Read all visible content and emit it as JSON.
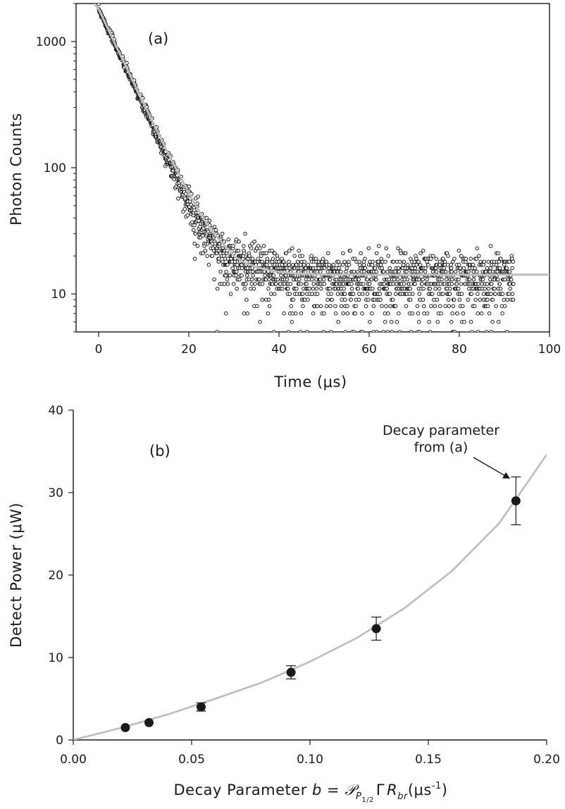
{
  "chart_data": [
    {
      "panel": "(a)",
      "type": "scatter",
      "xlabel": "Time (μs)",
      "ylabel": "Photon Counts",
      "xlim": [
        -5,
        100
      ],
      "ylim": [
        5,
        2000
      ],
      "yscale": "log",
      "x_ticks": [
        {
          "value": 0,
          "label": "0"
        },
        {
          "value": 20,
          "label": "20"
        },
        {
          "value": 40,
          "label": "40"
        },
        {
          "value": 60,
          "label": "60"
        },
        {
          "value": 80,
          "label": "80"
        },
        {
          "value": 100,
          "label": "100"
        }
      ],
      "y_ticks": [
        {
          "value": 10,
          "label": "10"
        },
        {
          "value": 100,
          "label": "100"
        },
        {
          "value": 1000,
          "label": "1000"
        }
      ],
      "series": [
        {
          "kind": "scatter",
          "marker": "open-circle",
          "color": "#1a1a1a",
          "x_start": 0,
          "x_end": 92,
          "points": [
            [
              0,
              1800
            ],
            [
              2,
              1250
            ],
            [
              4,
              880
            ],
            [
              6,
              615
            ],
            [
              8,
              430
            ],
            [
              10,
              300
            ],
            [
              12,
              212
            ],
            [
              14,
              148
            ],
            [
              16,
              104
            ],
            [
              18,
              74
            ],
            [
              20,
              53
            ],
            [
              22,
              39
            ],
            [
              24,
              30
            ],
            [
              26,
              24
            ],
            [
              28,
              20
            ],
            [
              30,
              18
            ],
            [
              32,
              17
            ],
            [
              35,
              16
            ],
            [
              38,
              15
            ],
            [
              42,
              14
            ],
            [
              50,
              13
            ],
            [
              60,
              13
            ],
            [
              70,
              13
            ],
            [
              80,
              13
            ],
            [
              92,
              13
            ]
          ]
        },
        {
          "kind": "line",
          "color": "#bdbdbd",
          "points": [
            [
              -1,
              2000
            ],
            [
              0,
              1800
            ],
            [
              2,
              1275
            ],
            [
              4,
              900
            ],
            [
              6,
              640
            ],
            [
              8,
              455
            ],
            [
              10,
              323
            ],
            [
              12,
              230
            ],
            [
              14,
              164
            ],
            [
              16,
              118
            ],
            [
              18,
              86
            ],
            [
              20,
              63
            ],
            [
              22,
              47
            ],
            [
              24,
              36
            ],
            [
              26,
              29
            ],
            [
              28,
              24
            ],
            [
              30,
              20
            ],
            [
              32,
              18
            ],
            [
              34,
              16.8
            ],
            [
              36,
              15.9
            ],
            [
              38,
              15.3
            ],
            [
              40,
              14.9
            ],
            [
              44,
              14.5
            ],
            [
              50,
              14.3
            ],
            [
              60,
              14.2
            ],
            [
              80,
              14.2
            ],
            [
              100,
              14.2
            ]
          ]
        }
      ]
    },
    {
      "panel": "(b)",
      "type": "scatter",
      "xlabel": "Decay Parameter b = 𝒫P1/2 Γ Rbr(μs-1)",
      "xlabel_parts": {
        "lead": "Decay Parameter ",
        "b": "b",
        "eq": " = ",
        "script_p": "𝒫",
        "sub_p": "P",
        "sub_half": "1/2",
        "gamma": "Γ",
        "r": "R",
        "sub_br": "br",
        "unit_open": "(μs",
        "unit_sup": "-1",
        "unit_close": ")"
      },
      "ylabel": "Detect Power (μW)",
      "xlim": [
        0,
        0.2
      ],
      "ylim": [
        0,
        40
      ],
      "x_ticks": [
        {
          "value": 0,
          "label": "0.00"
        },
        {
          "value": 0.05,
          "label": "0.05"
        },
        {
          "value": 0.1,
          "label": "0.10"
        },
        {
          "value": 0.15,
          "label": "0.15"
        },
        {
          "value": 0.2,
          "label": "0.20"
        }
      ],
      "y_ticks": [
        {
          "value": 0,
          "label": "0"
        },
        {
          "value": 10,
          "label": "10"
        },
        {
          "value": 20,
          "label": "20"
        },
        {
          "value": 30,
          "label": "30"
        },
        {
          "value": 40,
          "label": "40"
        }
      ],
      "points": [
        {
          "x": 0.022,
          "y": 1.5,
          "err": 0
        },
        {
          "x": 0.032,
          "y": 2.1,
          "err": 0
        },
        {
          "x": 0.054,
          "y": 4.0,
          "err": 0.5
        },
        {
          "x": 0.092,
          "y": 8.2,
          "err": 0.8
        },
        {
          "x": 0.128,
          "y": 13.5,
          "err": 1.4
        },
        {
          "x": 0.187,
          "y": 29.0,
          "err": 2.9
        }
      ],
      "fit_curve": [
        [
          0,
          0
        ],
        [
          0.02,
          1.45
        ],
        [
          0.04,
          3.1
        ],
        [
          0.06,
          5.0
        ],
        [
          0.08,
          7.0
        ],
        [
          0.1,
          9.5
        ],
        [
          0.12,
          12.4
        ],
        [
          0.14,
          16.0
        ],
        [
          0.16,
          20.5
        ],
        [
          0.18,
          26.3
        ],
        [
          0.2,
          34.6
        ]
      ],
      "fit_color": "#bdbdbd",
      "annotation": {
        "lines": [
          "Decay parameter",
          "from (a)"
        ],
        "target_index": 5
      }
    }
  ]
}
